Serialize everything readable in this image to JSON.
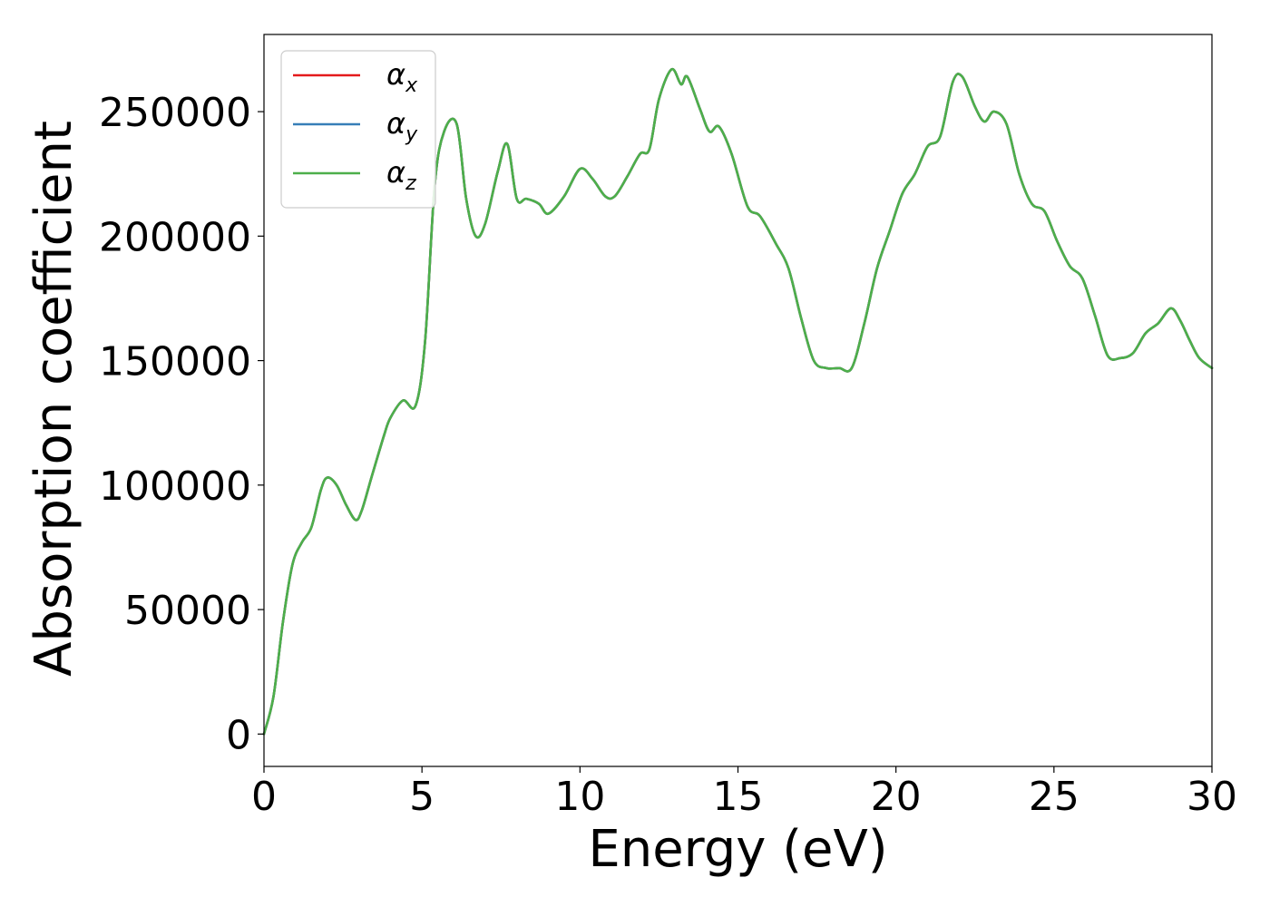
{
  "chart_data": {
    "type": "line",
    "xlabel": "Energy (eV)",
    "ylabel": "Absorption coefficient",
    "xlim": [
      0,
      30
    ],
    "ylim": [
      -13000,
      281000
    ],
    "xticks": [
      0,
      5,
      10,
      15,
      20,
      25,
      30
    ],
    "xtick_labels": [
      "0",
      "5",
      "10",
      "15",
      "20",
      "25",
      "30"
    ],
    "yticks": [
      0,
      50000,
      100000,
      150000,
      200000,
      250000
    ],
    "ytick_labels": [
      "0",
      "50000",
      "100000",
      "150000",
      "200000",
      "250000"
    ],
    "grid": false,
    "legend_position": "top-left",
    "x": [
      0,
      0.3,
      0.6,
      0.9,
      1.2,
      1.5,
      1.8,
      2.0,
      2.3,
      2.6,
      2.9,
      3.1,
      3.4,
      3.8,
      4.0,
      4.4,
      4.8,
      5.1,
      5.4,
      5.7,
      6.1,
      6.4,
      6.7,
      7.0,
      7.4,
      7.7,
      8.0,
      8.3,
      8.7,
      9.0,
      9.5,
      10.0,
      10.4,
      10.8,
      11.1,
      11.5,
      11.9,
      12.2,
      12.5,
      12.9,
      13.2,
      13.4,
      13.8,
      14.1,
      14.4,
      14.8,
      15.3,
      15.7,
      16.2,
      16.6,
      17.0,
      17.4,
      17.8,
      18.2,
      18.6,
      19.0,
      19.4,
      19.8,
      20.2,
      20.6,
      21.0,
      21.4,
      21.8,
      22.1,
      22.5,
      22.8,
      23.1,
      23.5,
      23.9,
      24.3,
      24.7,
      25.1,
      25.5,
      25.9,
      26.3,
      26.7,
      27.1,
      27.5,
      27.9,
      28.3,
      28.7,
      29.0,
      29.3,
      29.6,
      30.0
    ],
    "series": [
      {
        "name": "α_x",
        "label_base": "α",
        "label_sub": "x",
        "color": "#e41a1c",
        "values": [
          0,
          15000,
          45000,
          68000,
          77000,
          83000,
          98000,
          103000,
          100000,
          92000,
          86000,
          90000,
          103000,
          120000,
          127000,
          134000,
          132000,
          158000,
          220000,
          242000,
          245000,
          215000,
          200000,
          205000,
          226000,
          237000,
          215000,
          215000,
          213000,
          209000,
          216000,
          227000,
          223000,
          216000,
          216000,
          224000,
          233000,
          235000,
          255000,
          267000,
          261000,
          264000,
          251000,
          242000,
          244000,
          233000,
          212000,
          208000,
          197000,
          187000,
          167000,
          150000,
          147000,
          147000,
          147000,
          165000,
          187000,
          202000,
          217000,
          225000,
          236000,
          240000,
          262000,
          264000,
          252000,
          246000,
          250000,
          245000,
          225000,
          213000,
          210000,
          198000,
          188000,
          183000,
          168000,
          152000,
          151000,
          153000,
          161000,
          165000,
          171000,
          166000,
          158000,
          151000,
          147000
        ]
      },
      {
        "name": "α_y",
        "label_base": "α",
        "label_sub": "y",
        "color": "#377eb8",
        "values": [
          0,
          15000,
          45000,
          68000,
          77000,
          83000,
          98000,
          103000,
          100000,
          92000,
          86000,
          90000,
          103000,
          120000,
          127000,
          134000,
          132000,
          158000,
          220000,
          242000,
          245000,
          215000,
          200000,
          205000,
          226000,
          237000,
          215000,
          215000,
          213000,
          209000,
          216000,
          227000,
          223000,
          216000,
          216000,
          224000,
          233000,
          235000,
          255000,
          267000,
          261000,
          264000,
          251000,
          242000,
          244000,
          233000,
          212000,
          208000,
          197000,
          187000,
          167000,
          150000,
          147000,
          147000,
          147000,
          165000,
          187000,
          202000,
          217000,
          225000,
          236000,
          240000,
          262000,
          264000,
          252000,
          246000,
          250000,
          245000,
          225000,
          213000,
          210000,
          198000,
          188000,
          183000,
          168000,
          152000,
          151000,
          153000,
          161000,
          165000,
          171000,
          166000,
          158000,
          151000,
          147000
        ]
      },
      {
        "name": "α_z",
        "label_base": "α",
        "label_sub": "z",
        "color": "#4daf4a",
        "values": [
          0,
          15000,
          45000,
          68000,
          77000,
          83000,
          98000,
          103000,
          100000,
          92000,
          86000,
          90000,
          103000,
          120000,
          127000,
          134000,
          132000,
          158000,
          220000,
          242000,
          245000,
          215000,
          200000,
          205000,
          226000,
          237000,
          215000,
          215000,
          213000,
          209000,
          216000,
          227000,
          223000,
          216000,
          216000,
          224000,
          233000,
          235000,
          255000,
          267000,
          261000,
          264000,
          251000,
          242000,
          244000,
          233000,
          212000,
          208000,
          197000,
          187000,
          167000,
          150000,
          147000,
          147000,
          147000,
          165000,
          187000,
          202000,
          217000,
          225000,
          236000,
          240000,
          262000,
          264000,
          252000,
          246000,
          250000,
          245000,
          225000,
          213000,
          210000,
          198000,
          188000,
          183000,
          168000,
          152000,
          151000,
          153000,
          161000,
          165000,
          171000,
          166000,
          158000,
          151000,
          147000
        ]
      }
    ]
  }
}
